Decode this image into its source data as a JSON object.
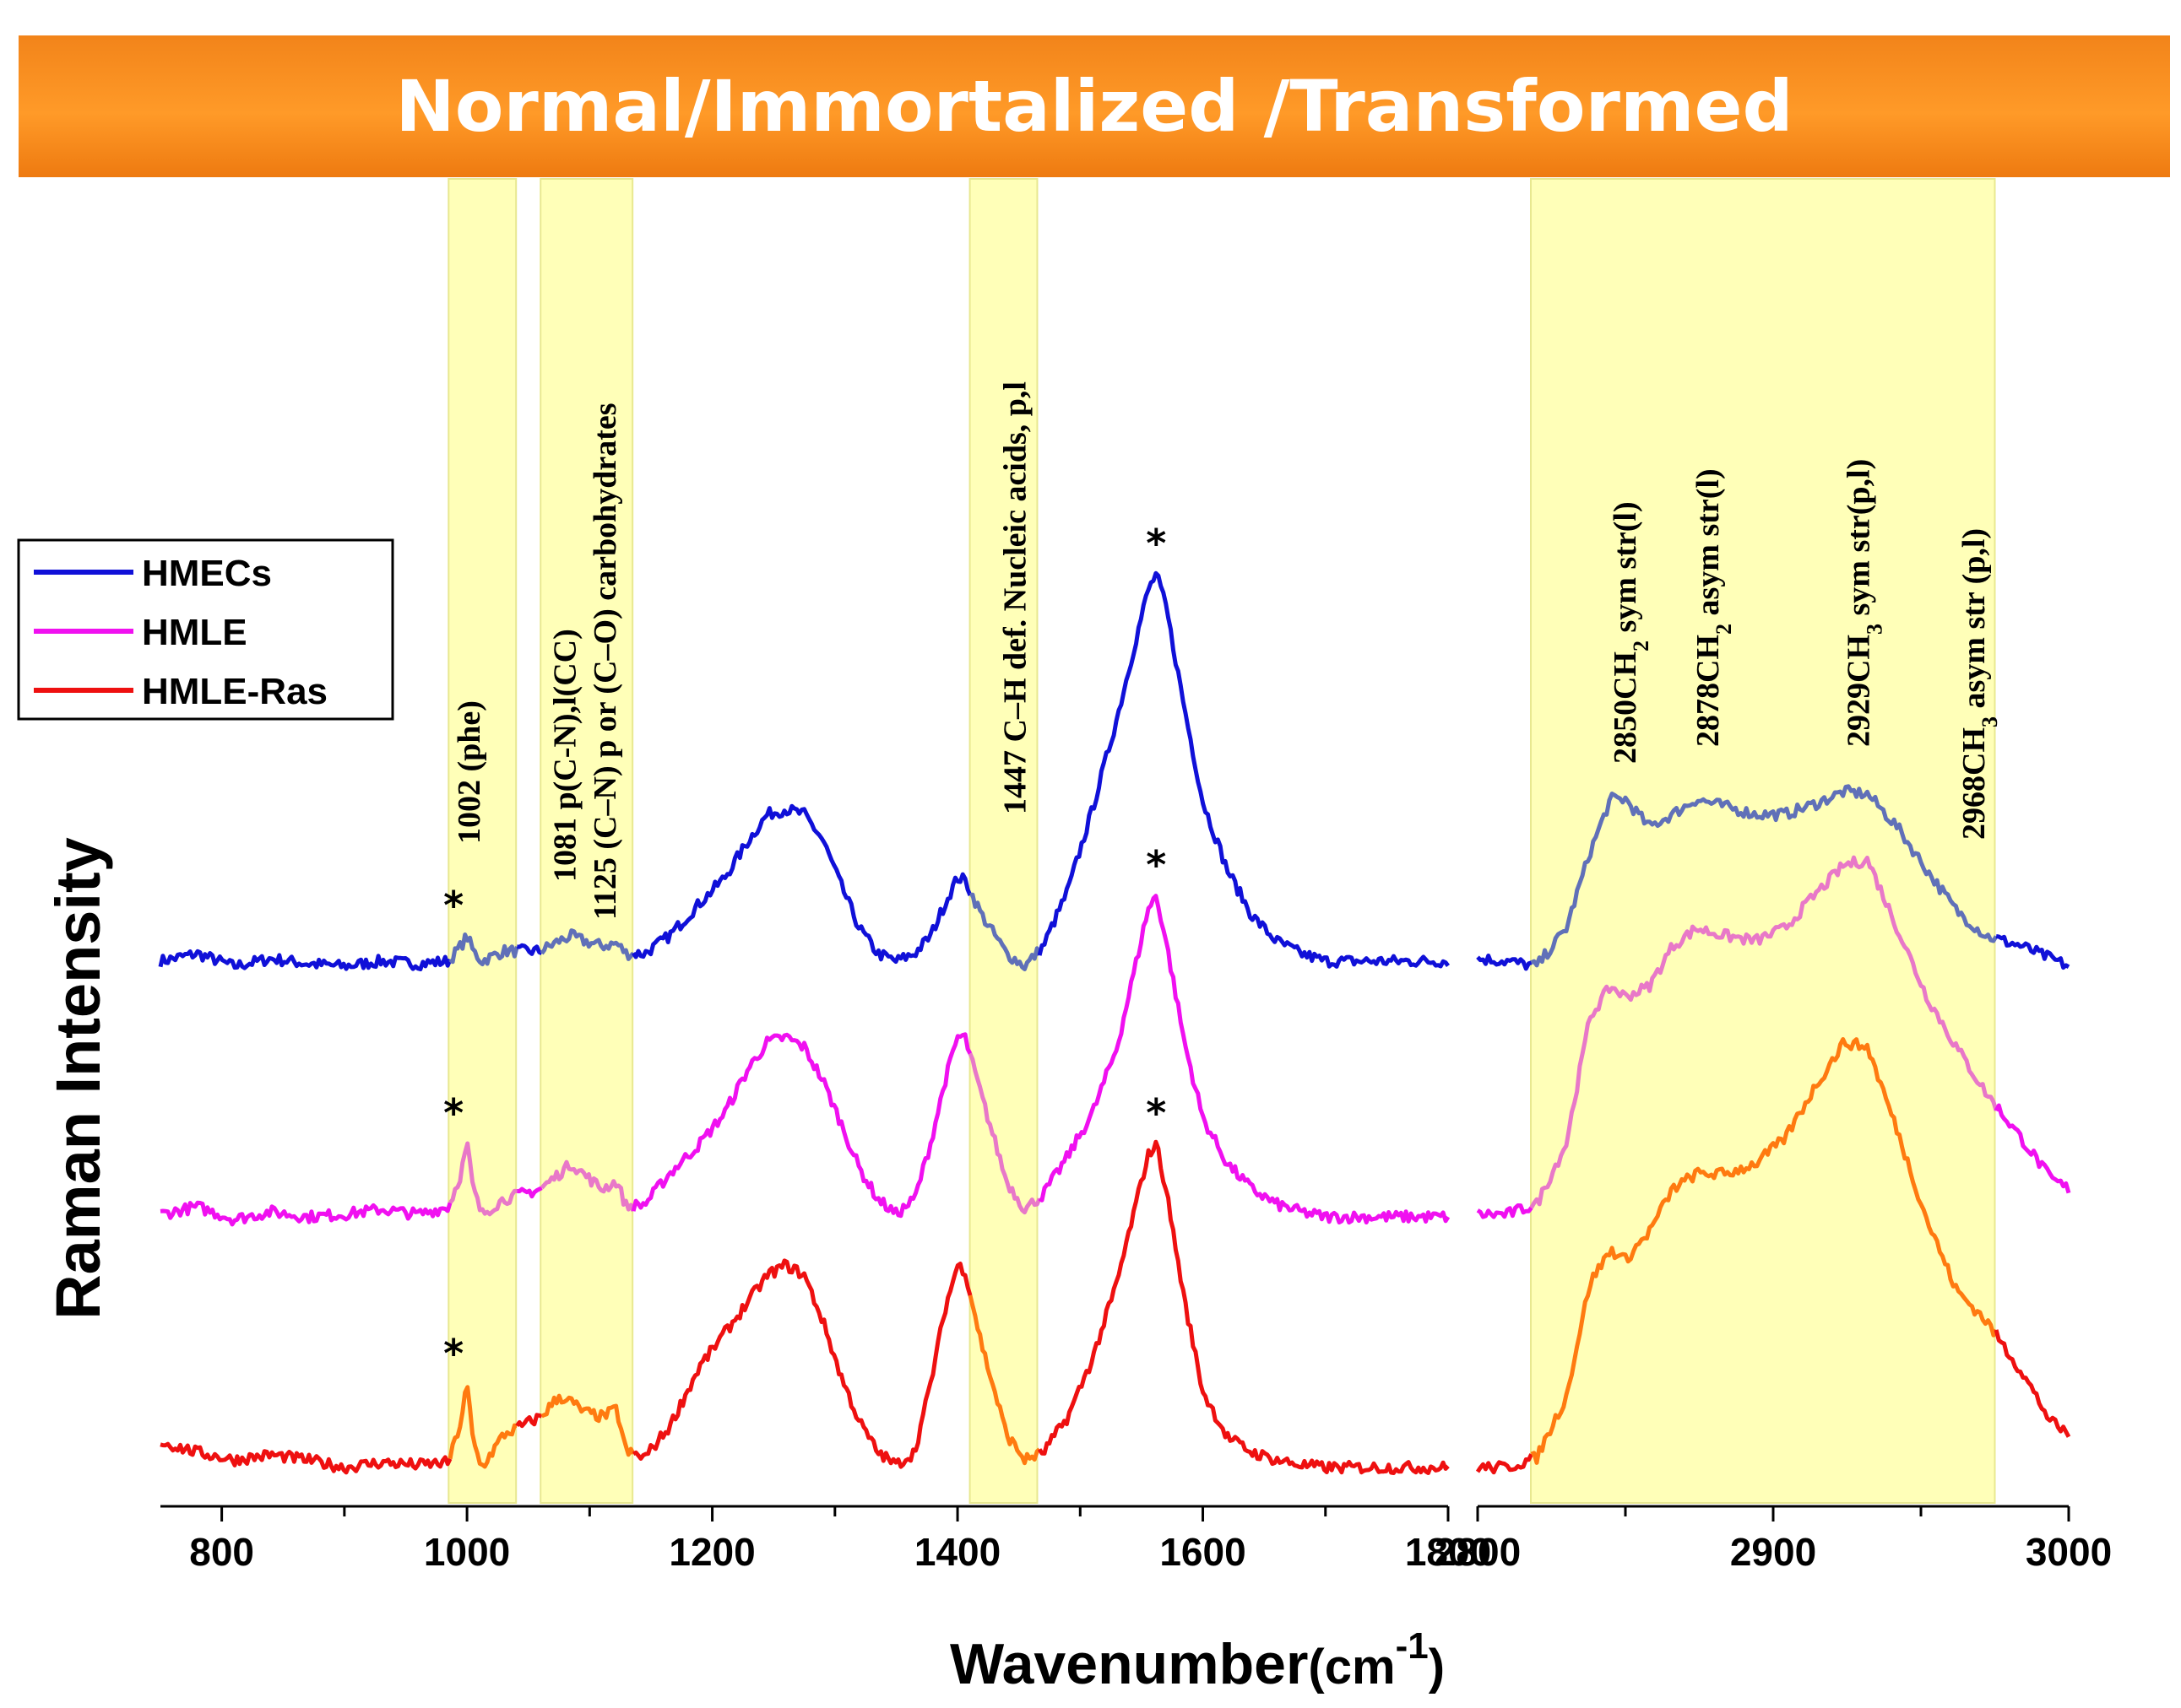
{
  "banner": {
    "title": "Normal/Immortalized /Transformed"
  },
  "chart_data": {
    "type": "line",
    "title": "Normal/Immortalized /Transformed",
    "xlabel": "Wavenumber",
    "xlabel_unit_base": "(cm",
    "xlabel_unit_exp": "-1",
    "xlabel_unit_close": ")",
    "ylabel": "Raman Intensity",
    "grid": false,
    "legend_position": "left",
    "panels": [
      {
        "name": "fingerprint",
        "xlim": [
          750,
          1800
        ],
        "ticks": [
          800,
          1000,
          1200,
          1400,
          1600,
          1800
        ],
        "tick_labels": [
          "800",
          "1000",
          "1200",
          "1400",
          "1600",
          "1800"
        ]
      },
      {
        "name": "high-wavenumber",
        "xlim": [
          2800,
          3000
        ],
        "ticks": [
          2800,
          2900,
          3000
        ],
        "tick_labels": [
          "2800",
          "2900",
          "3000"
        ]
      }
    ],
    "bands": [
      {
        "panel": 0,
        "range": [
          985,
          1040
        ],
        "label": "1002 (phe)",
        "label_x": 1002
      },
      {
        "panel": 0,
        "range": [
          1060,
          1135
        ],
        "label": "1081 p(C-N),l(CC)",
        "label_x": 1080
      },
      {
        "panel": 0,
        "range": [
          1060,
          1135
        ],
        "label": "1125 (C–N) p or (C–O)  carbohydrates",
        "label_x": 1113
      },
      {
        "panel": 0,
        "range": [
          1410,
          1465
        ],
        "label": "1447 C–H def. Nucleic acids, p,l",
        "label_x": 1447
      },
      {
        "panel": 1,
        "range": [
          2818,
          2975
        ],
        "label": "2850CH₂ sym str(l)",
        "label_x": 2850
      },
      {
        "panel": 1,
        "range": [
          2818,
          2975
        ],
        "label": "2878CH₂ asym str(l)",
        "label_x": 2878
      },
      {
        "panel": 1,
        "range": [
          2818,
          2975
        ],
        "label": "2929CH₃ sym str(p,l)",
        "label_x": 2929
      },
      {
        "panel": 1,
        "range": [
          2818,
          2975
        ],
        "label": "2968CH₃ asym str (p,l)",
        "label_x": 2968
      }
    ],
    "series": [
      {
        "name": "HMECs",
        "color": "#1010d8",
        "band_color": "#6070b8",
        "offset": 2.0,
        "points_low": [
          [
            750,
            0.02
          ],
          [
            780,
            0.05
          ],
          [
            810,
            0.0
          ],
          [
            840,
            0.03
          ],
          [
            870,
            0.01
          ],
          [
            900,
            0.0
          ],
          [
            930,
            0.02
          ],
          [
            960,
            0.01
          ],
          [
            985,
            0.02
          ],
          [
            995,
            0.08
          ],
          [
            1000,
            0.12
          ],
          [
            1005,
            0.06
          ],
          [
            1012,
            0.02
          ],
          [
            1030,
            0.06
          ],
          [
            1060,
            0.06
          ],
          [
            1075,
            0.1
          ],
          [
            1085,
            0.12
          ],
          [
            1095,
            0.1
          ],
          [
            1110,
            0.08
          ],
          [
            1122,
            0.09
          ],
          [
            1130,
            0.05
          ],
          [
            1145,
            0.05
          ],
          [
            1165,
            0.12
          ],
          [
            1190,
            0.25
          ],
          [
            1210,
            0.35
          ],
          [
            1230,
            0.5
          ],
          [
            1245,
            0.6
          ],
          [
            1260,
            0.62
          ],
          [
            1275,
            0.6
          ],
          [
            1290,
            0.5
          ],
          [
            1305,
            0.32
          ],
          [
            1320,
            0.15
          ],
          [
            1335,
            0.05
          ],
          [
            1350,
            0.02
          ],
          [
            1365,
            0.05
          ],
          [
            1378,
            0.12
          ],
          [
            1390,
            0.25
          ],
          [
            1400,
            0.35
          ],
          [
            1406,
            0.34
          ],
          [
            1420,
            0.2
          ],
          [
            1440,
            0.05
          ],
          [
            1455,
            0.0
          ],
          [
            1470,
            0.08
          ],
          [
            1490,
            0.3
          ],
          [
            1510,
            0.62
          ],
          [
            1530,
            0.98
          ],
          [
            1545,
            1.28
          ],
          [
            1555,
            1.48
          ],
          [
            1562,
            1.55
          ],
          [
            1570,
            1.42
          ],
          [
            1585,
            1.02
          ],
          [
            1600,
            0.65
          ],
          [
            1620,
            0.38
          ],
          [
            1640,
            0.2
          ],
          [
            1660,
            0.1
          ],
          [
            1680,
            0.05
          ],
          [
            1700,
            0.02
          ]
        ],
        "points_high": [
          [
            2800,
            0.03
          ],
          [
            2810,
            0.02
          ],
          [
            2820,
            0.0
          ],
          [
            2830,
            0.15
          ],
          [
            2838,
            0.45
          ],
          [
            2845,
            0.66
          ],
          [
            2850,
            0.66
          ],
          [
            2858,
            0.55
          ],
          [
            2866,
            0.6
          ],
          [
            2874,
            0.66
          ],
          [
            2884,
            0.63
          ],
          [
            2894,
            0.6
          ],
          [
            2904,
            0.6
          ],
          [
            2914,
            0.64
          ],
          [
            2924,
            0.69
          ],
          [
            2932,
            0.68
          ],
          [
            2942,
            0.55
          ],
          [
            2952,
            0.38
          ],
          [
            2962,
            0.22
          ],
          [
            2972,
            0.12
          ],
          [
            2984,
            0.08
          ],
          [
            2994,
            0.03
          ],
          [
            3000,
            0.0
          ]
        ]
      },
      {
        "name": "HMLE",
        "color": "#f010f0",
        "band_color": "#e878c8",
        "offset": 1.0,
        "points_low": [
          [
            750,
            0.02
          ],
          [
            780,
            0.05
          ],
          [
            810,
            0.0
          ],
          [
            840,
            0.03
          ],
          [
            870,
            0.01
          ],
          [
            900,
            0.02
          ],
          [
            930,
            0.04
          ],
          [
            960,
            0.02
          ],
          [
            985,
            0.05
          ],
          [
            995,
            0.18
          ],
          [
            1000,
            0.3
          ],
          [
            1005,
            0.12
          ],
          [
            1012,
            0.02
          ],
          [
            1030,
            0.08
          ],
          [
            1060,
            0.12
          ],
          [
            1075,
            0.18
          ],
          [
            1085,
            0.22
          ],
          [
            1095,
            0.18
          ],
          [
            1110,
            0.12
          ],
          [
            1122,
            0.15
          ],
          [
            1130,
            0.05
          ],
          [
            1145,
            0.06
          ],
          [
            1165,
            0.18
          ],
          [
            1190,
            0.3
          ],
          [
            1210,
            0.42
          ],
          [
            1230,
            0.6
          ],
          [
            1245,
            0.7
          ],
          [
            1260,
            0.72
          ],
          [
            1275,
            0.68
          ],
          [
            1290,
            0.55
          ],
          [
            1305,
            0.38
          ],
          [
            1320,
            0.2
          ],
          [
            1335,
            0.08
          ],
          [
            1350,
            0.02
          ],
          [
            1365,
            0.08
          ],
          [
            1378,
            0.3
          ],
          [
            1390,
            0.55
          ],
          [
            1400,
            0.72
          ],
          [
            1406,
            0.72
          ],
          [
            1420,
            0.48
          ],
          [
            1440,
            0.15
          ],
          [
            1455,
            0.04
          ],
          [
            1470,
            0.1
          ],
          [
            1490,
            0.25
          ],
          [
            1510,
            0.42
          ],
          [
            1530,
            0.68
          ],
          [
            1545,
            1.0
          ],
          [
            1555,
            1.22
          ],
          [
            1562,
            1.28
          ],
          [
            1570,
            1.1
          ],
          [
            1585,
            0.7
          ],
          [
            1600,
            0.4
          ],
          [
            1620,
            0.22
          ],
          [
            1640,
            0.12
          ],
          [
            1660,
            0.06
          ],
          [
            1680,
            0.03
          ],
          [
            1700,
            0.01
          ]
        ],
        "points_high": [
          [
            2800,
            0.02
          ],
          [
            2810,
            0.02
          ],
          [
            2820,
            0.06
          ],
          [
            2830,
            0.3
          ],
          [
            2838,
            0.8
          ],
          [
            2845,
            0.92
          ],
          [
            2850,
            0.88
          ],
          [
            2858,
            0.92
          ],
          [
            2866,
            1.08
          ],
          [
            2874,
            1.15
          ],
          [
            2884,
            1.12
          ],
          [
            2894,
            1.1
          ],
          [
            2904,
            1.15
          ],
          [
            2914,
            1.28
          ],
          [
            2924,
            1.4
          ],
          [
            2932,
            1.42
          ],
          [
            2942,
            1.15
          ],
          [
            2952,
            0.88
          ],
          [
            2962,
            0.68
          ],
          [
            2972,
            0.5
          ],
          [
            2984,
            0.32
          ],
          [
            2994,
            0.16
          ],
          [
            3000,
            0.12
          ]
        ]
      },
      {
        "name": "HMLE-Ras",
        "color": "#ee1010",
        "band_color": "#ff7a10",
        "offset": 0.0,
        "points_low": [
          [
            750,
            0.12
          ],
          [
            780,
            0.08
          ],
          [
            810,
            0.05
          ],
          [
            840,
            0.07
          ],
          [
            870,
            0.05
          ],
          [
            900,
            0.02
          ],
          [
            930,
            0.04
          ],
          [
            960,
            0.03
          ],
          [
            985,
            0.04
          ],
          [
            995,
            0.2
          ],
          [
            1000,
            0.35
          ],
          [
            1005,
            0.12
          ],
          [
            1012,
            0.02
          ],
          [
            1030,
            0.15
          ],
          [
            1060,
            0.22
          ],
          [
            1075,
            0.3
          ],
          [
            1085,
            0.28
          ],
          [
            1095,
            0.24
          ],
          [
            1110,
            0.22
          ],
          [
            1122,
            0.25
          ],
          [
            1130,
            0.08
          ],
          [
            1145,
            0.06
          ],
          [
            1165,
            0.18
          ],
          [
            1190,
            0.42
          ],
          [
            1210,
            0.55
          ],
          [
            1230,
            0.68
          ],
          [
            1245,
            0.78
          ],
          [
            1260,
            0.82
          ],
          [
            1275,
            0.78
          ],
          [
            1290,
            0.6
          ],
          [
            1305,
            0.38
          ],
          [
            1320,
            0.2
          ],
          [
            1335,
            0.08
          ],
          [
            1350,
            0.03
          ],
          [
            1365,
            0.08
          ],
          [
            1378,
            0.35
          ],
          [
            1390,
            0.65
          ],
          [
            1400,
            0.82
          ],
          [
            1406,
            0.8
          ],
          [
            1420,
            0.5
          ],
          [
            1440,
            0.15
          ],
          [
            1455,
            0.05
          ],
          [
            1470,
            0.08
          ],
          [
            1490,
            0.22
          ],
          [
            1510,
            0.45
          ],
          [
            1530,
            0.75
          ],
          [
            1545,
            1.05
          ],
          [
            1555,
            1.25
          ],
          [
            1562,
            1.3
          ],
          [
            1570,
            1.12
          ],
          [
            1585,
            0.68
          ],
          [
            1600,
            0.32
          ],
          [
            1620,
            0.14
          ],
          [
            1640,
            0.08
          ],
          [
            1660,
            0.05
          ],
          [
            1680,
            0.03
          ],
          [
            1700,
            0.02
          ]
        ],
        "points_high": [
          [
            2800,
            0.02
          ],
          [
            2810,
            0.02
          ],
          [
            2820,
            0.06
          ],
          [
            2830,
            0.3
          ],
          [
            2838,
            0.75
          ],
          [
            2845,
            0.88
          ],
          [
            2850,
            0.84
          ],
          [
            2858,
            0.95
          ],
          [
            2866,
            1.12
          ],
          [
            2874,
            1.18
          ],
          [
            2884,
            1.18
          ],
          [
            2894,
            1.22
          ],
          [
            2904,
            1.32
          ],
          [
            2914,
            1.52
          ],
          [
            2924,
            1.7
          ],
          [
            2932,
            1.68
          ],
          [
            2942,
            1.35
          ],
          [
            2952,
            1.0
          ],
          [
            2962,
            0.72
          ],
          [
            2972,
            0.6
          ],
          [
            2984,
            0.4
          ],
          [
            2994,
            0.2
          ],
          [
            3000,
            0.15
          ]
        ]
      }
    ],
    "peak_markers": [
      {
        "series": "HMECs",
        "x": 1000,
        "label": "*"
      },
      {
        "series": "HMECs",
        "x": 1562,
        "label": "*"
      },
      {
        "series": "HMLE",
        "x": 1000,
        "label": "*"
      },
      {
        "series": "HMLE",
        "x": 1562,
        "label": "*"
      },
      {
        "series": "HMLE-Ras",
        "x": 1000,
        "label": "*"
      },
      {
        "series": "HMLE-Ras",
        "x": 1562,
        "label": "*"
      }
    ]
  }
}
